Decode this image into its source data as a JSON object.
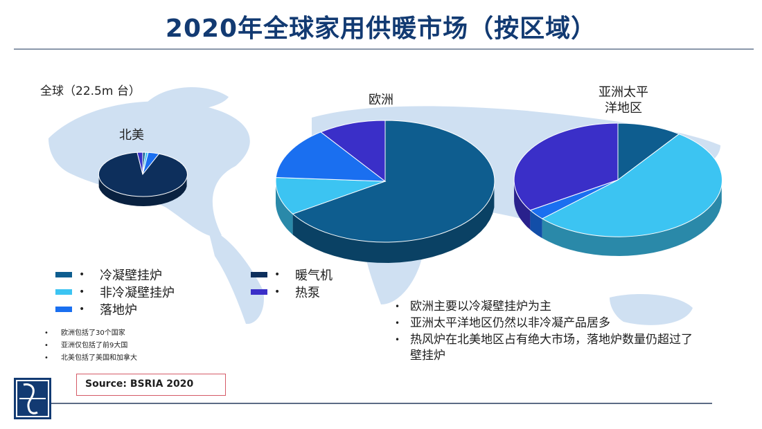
{
  "title": "2020年全球家用供暖市场（按区域）",
  "global_label": "全球（22.5m 台）",
  "colors": {
    "condensing_boiler": "#0e5d8f",
    "non_condensing_boiler": "#3cc4f2",
    "floor_standing_boiler": "#1a6ff0",
    "warm_air_furnace": "#0d2f5c",
    "heat_pump": "#3a2fc8",
    "map": "#cfe0f2"
  },
  "legend": {
    "bullet": "•",
    "items": [
      {
        "key": "condensing_boiler",
        "label": "冷凝壁挂炉"
      },
      {
        "key": "non_condensing_boiler",
        "label": "非冷凝壁挂炉"
      },
      {
        "key": "floor_standing_boiler",
        "label": "落地炉"
      },
      {
        "key": "warm_air_furnace",
        "label": "暖气机"
      },
      {
        "key": "heat_pump",
        "label": "热泵"
      }
    ]
  },
  "chart_data": [
    {
      "type": "pie",
      "region": "北美",
      "categories": [
        "冷凝壁挂炉",
        "非冷凝壁挂炉",
        "落地炉",
        "暖气机",
        "热泵"
      ],
      "values": [
        1,
        1,
        4,
        92,
        2
      ]
    },
    {
      "type": "pie",
      "region": "欧洲",
      "categories": [
        "冷凝壁挂炉",
        "非冷凝壁挂炉",
        "落地炉",
        "暖气机",
        "热泵"
      ],
      "values": [
        66,
        10,
        14,
        0,
        10
      ]
    },
    {
      "type": "pie",
      "region": "亚洲太平洋地区",
      "categories": [
        "冷凝壁挂炉",
        "非冷凝壁挂炉",
        "落地炉",
        "暖气机",
        "热泵"
      ],
      "values": [
        10,
        53,
        3,
        0,
        34
      ]
    }
  ],
  "region_labels": {
    "north_america": "北美",
    "europe": "欧洲",
    "asia_pacific_line1": "亚洲太平",
    "asia_pacific_line2": "洋地区"
  },
  "notes": {
    "bullet": "•",
    "items": [
      "欧洲包括了30个国家",
      "亚洲仅包括了前9大国",
      "北美包括了美国和加拿大"
    ]
  },
  "points": {
    "bullet": "•",
    "items": [
      "欧洲主要以冷凝壁挂炉为主",
      "亚洲太平洋地区仍然以非冷凝产品居多",
      "热风炉在北美地区占有绝大市场，落地炉数量仍超过了壁挂炉"
    ]
  },
  "source": "Source: BSRIA 2020"
}
